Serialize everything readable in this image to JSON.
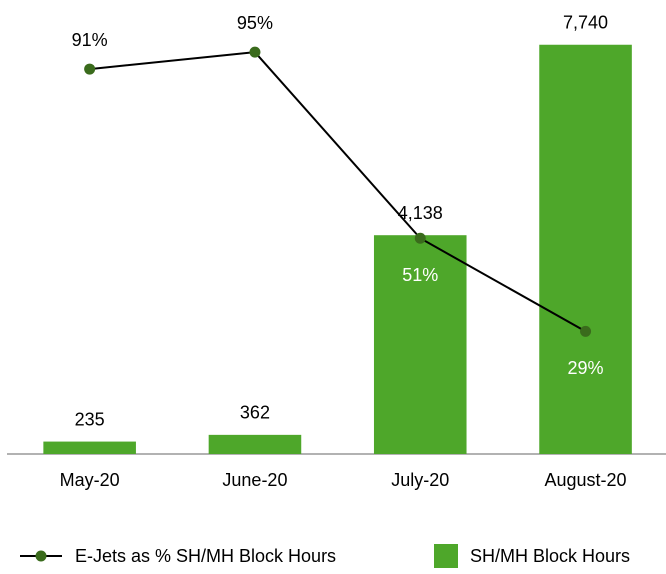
{
  "chart_data": {
    "type": "bar",
    "categories": [
      "May-20",
      "June-20",
      "July-20",
      "August-20"
    ],
    "series": [
      {
        "name": "SH/MH Block Hours",
        "type": "bar",
        "color": "#4ea72a",
        "values": [
          235,
          362,
          4138,
          7740
        ],
        "value_labels": [
          "235",
          "362",
          "4,138",
          "7,740"
        ]
      },
      {
        "name": "E-Jets as % SH/MH Block Hours",
        "type": "line",
        "axis": "y2",
        "color": "#3a6b1c",
        "values": [
          91,
          95,
          51,
          29
        ],
        "value_labels": [
          "91%",
          "95%",
          "51%",
          "29%"
        ]
      }
    ],
    "ylim": [
      0,
      8000
    ],
    "y2lim": [
      0,
      100
    ],
    "grid": false,
    "legend": "bottom"
  }
}
